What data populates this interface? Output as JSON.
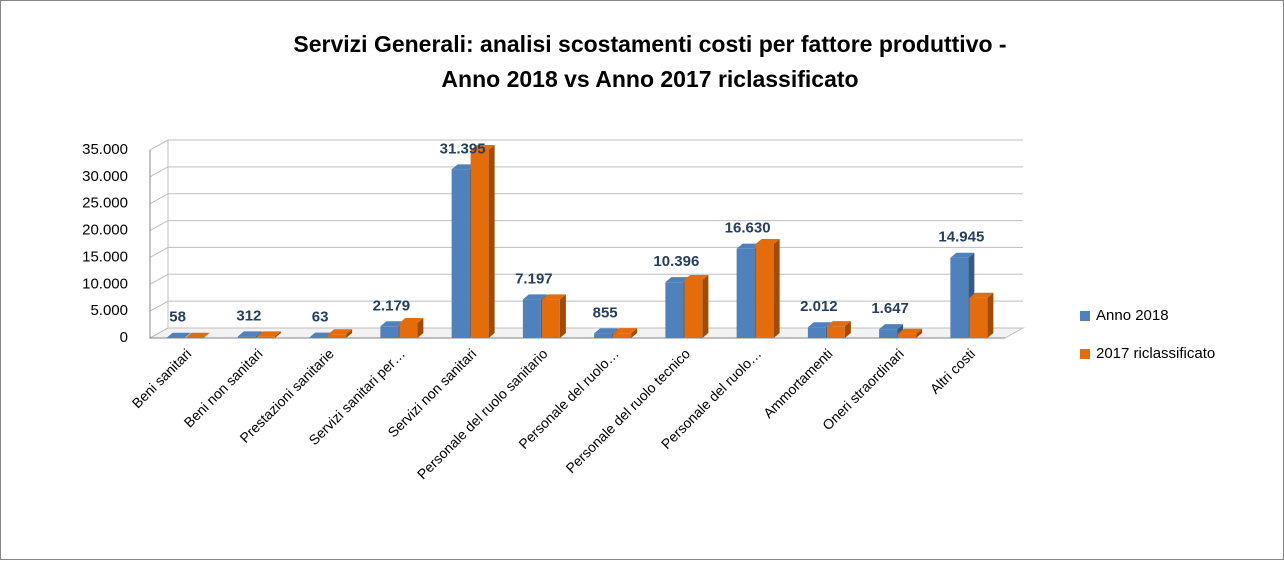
{
  "chart_data": {
    "type": "bar3d",
    "title": [
      "Servizi Generali: analisi scostamenti costi per fattore produttivo -",
      "Anno 2018 vs Anno 2017 riclassificato"
    ],
    "categories": [
      "Beni sanitari",
      "Beni non sanitari",
      "Prestazioni sanitarie",
      "Servizi sanitari per…",
      "Servizi non sanitari",
      "Personale del ruolo sanitario",
      "Personale del ruolo…",
      "Personale del ruolo tecnico",
      "Personale del ruolo…",
      "Ammortamenti",
      "Oneri straordinari",
      "Altri costi"
    ],
    "series": [
      {
        "name": "Anno 2018",
        "color": "#4f81bd",
        "values": [
          58,
          312,
          63,
          2179,
          31395,
          7197,
          855,
          10396,
          16630,
          2012,
          1647,
          14945
        ],
        "value_labels": [
          "58",
          "312",
          "63",
          "2.179",
          "31.395",
          "7.197",
          "855",
          "10.396",
          "16.630",
          "2.012",
          "1.647",
          "14.945"
        ]
      },
      {
        "name": "2017 riclassificato",
        "color": "#e46c0a",
        "values": [
          50,
          300,
          700,
          2800,
          35000,
          7200,
          900,
          10800,
          17500,
          2200,
          800,
          7500
        ]
      }
    ],
    "ylim": [
      0,
      35000
    ],
    "yticks": [
      0,
      {
        "value": 5000,
        "label": "5.000"
      },
      {
        "value": 10000,
        "label": "10.000"
      },
      {
        "value": 15000,
        "label": "15.000"
      },
      {
        "value": 20000,
        "label": "20.000"
      },
      {
        "value": 25000,
        "label": "25.000"
      },
      {
        "value": 30000,
        "label": "30.000"
      },
      {
        "value": 35000,
        "label": "35.000"
      }
    ],
    "grid": true,
    "legend": "right"
  }
}
